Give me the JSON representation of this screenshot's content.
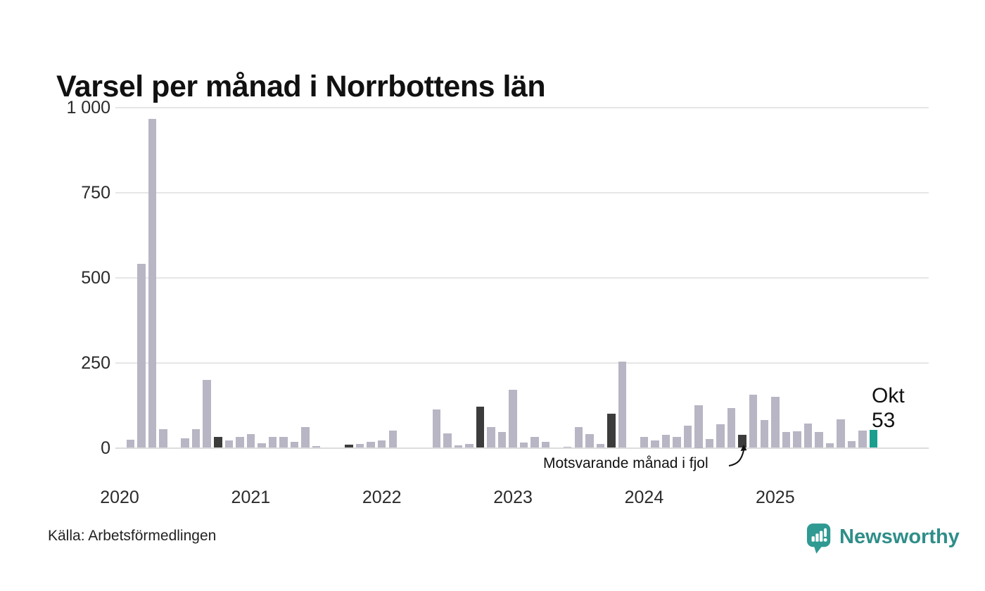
{
  "title": "Varsel per månad i Norrbottens län",
  "source": "Källa: Arbetsförmedlingen",
  "branding": {
    "logo_text": "Newsworthy"
  },
  "annotation": {
    "text": "Motsvarande månad i fjol"
  },
  "highlight_label": {
    "month": "Okt",
    "value": "53"
  },
  "colors": {
    "bar": "#b8b5c4",
    "bar_dark": "#3c3c3c",
    "bar_current": "#1a9e8e",
    "grid": "#e6e6e6",
    "axis_text": "#2b2b2b",
    "logo": "#2f8e89"
  },
  "chart_data": {
    "type": "bar",
    "title": "Varsel per månad i Norrbottens län",
    "xlabel": "",
    "ylabel": "",
    "ylim": [
      0,
      1000
    ],
    "grid": "horizontal",
    "y_ticks": [
      {
        "value": 0,
        "label": "0"
      },
      {
        "value": 250,
        "label": "250"
      },
      {
        "value": 500,
        "label": "500"
      },
      {
        "value": 750,
        "label": "750"
      },
      {
        "value": 1000,
        "label": "1 000"
      }
    ],
    "highlight_month_index": 9,
    "highlight_month_name": "Okt",
    "series": [
      {
        "year": "2020",
        "okt_style": "dark",
        "values": [
          0,
          23,
          540,
          965,
          55,
          0,
          28,
          55,
          200,
          33,
          21,
          33
        ]
      },
      {
        "year": "2021",
        "okt_style": "dark",
        "values": [
          40,
          13,
          32,
          31,
          18,
          61,
          6,
          0,
          0,
          9,
          12,
          18
        ]
      },
      {
        "year": "2022",
        "okt_style": "dark",
        "values": [
          21,
          50,
          0,
          0,
          0,
          112,
          42,
          7,
          11,
          120,
          60,
          46
        ]
      },
      {
        "year": "2023",
        "okt_style": "dark",
        "values": [
          170,
          15,
          33,
          17,
          0,
          4,
          61,
          40,
          12,
          100,
          253,
          0
        ]
      },
      {
        "year": "2024",
        "okt_style": "dark",
        "values": [
          33,
          22,
          38,
          31,
          65,
          125,
          26,
          70,
          117,
          39,
          157,
          82
        ]
      },
      {
        "year": "2025",
        "okt_style": "current",
        "values": [
          150,
          46,
          48,
          72,
          46,
          13,
          84,
          20,
          50,
          53
        ]
      }
    ],
    "annotations": [
      {
        "text": "Motsvarande månad i fjol",
        "target": "Okt 2024"
      },
      {
        "text": "Okt 53",
        "target": "Okt 2025"
      }
    ],
    "legend": "none"
  }
}
